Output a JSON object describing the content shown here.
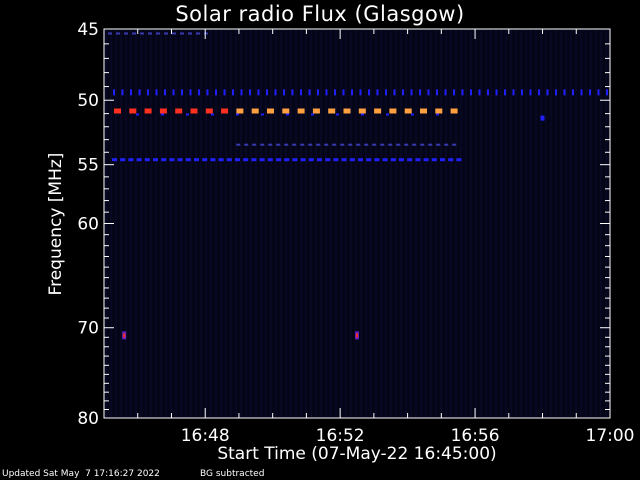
{
  "chart_data": {
    "type": "heatmap",
    "title": "Solar radio Flux (Glasgow)",
    "xlabel": "Start Time (07-May-22 16:45:00)",
    "ylabel": "Frequency [MHz]",
    "x_unit": "minutes",
    "xlim": [
      "16:45",
      "17:00"
    ],
    "xticks": [
      "16:48",
      "16:52",
      "16:56",
      "17:00"
    ],
    "ylim": [
      45,
      80
    ],
    "yscale": "log",
    "yticks": [
      "45",
      "50",
      "55",
      "60",
      "70",
      "80"
    ],
    "colors": {
      "background": "#050518",
      "frame": "#ffffff",
      "strong": "#ffa040",
      "hot": "#ff3020",
      "weak": "#2020ff",
      "faint": "#3a3ab0"
    },
    "features": [
      {
        "name": "strong dashed band",
        "freq_mhz": 50.8,
        "start": "16:45",
        "end": "16:55.5",
        "level": "strong"
      },
      {
        "name": "dotted band",
        "freq_mhz": 49.5,
        "start": "16:45",
        "end": "17:00",
        "level": "weak"
      },
      {
        "name": "dashed band",
        "freq_mhz": 54.6,
        "start": "16:45",
        "end": "16:55.5",
        "level": "weak"
      },
      {
        "name": "faint band",
        "freq_mhz": 53.4,
        "start": "16:48.8",
        "end": "16:55.5",
        "level": "faint"
      },
      {
        "name": "faint band",
        "freq_mhz": 45.3,
        "start": "16:45",
        "end": "16:48",
        "level": "faint"
      },
      {
        "name": "spot",
        "freq_mhz": 70.8,
        "time": "16:45.6",
        "level": "hot"
      },
      {
        "name": "spot",
        "freq_mhz": 70.8,
        "time": "16:52.5",
        "level": "hot"
      },
      {
        "name": "spot",
        "freq_mhz": 51.3,
        "time": "16:58",
        "level": "weak"
      }
    ]
  },
  "footer": {
    "updated": "Updated Sat May  7 17:16:27 2022",
    "note": "BG subtracted"
  }
}
